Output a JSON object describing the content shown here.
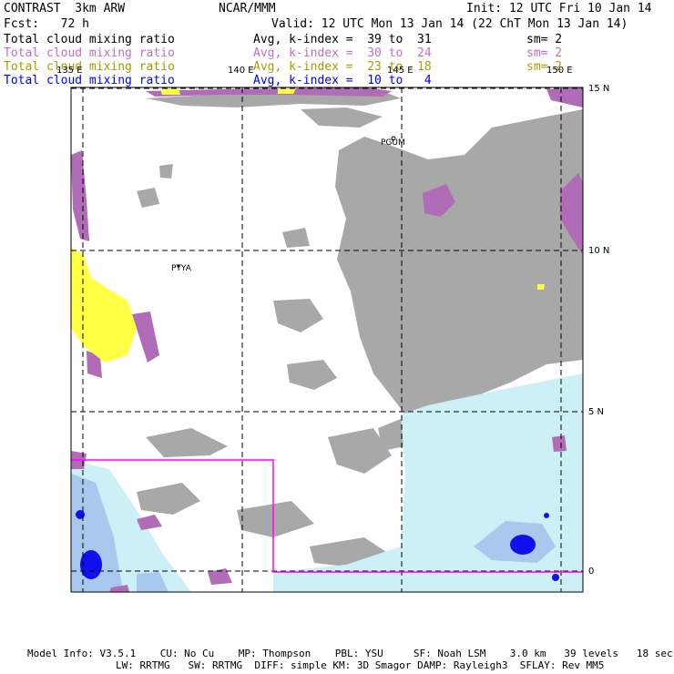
{
  "header": {
    "model": "CONTRAST  3km ARW",
    "org": "NCAR/MMM",
    "init": "Init: 12 UTC Fri 10 Jan 14",
    "fcst": "Fcst:   72 h",
    "valid": "Valid: 12 UTC Mon 13 Jan 14 (22 ChT Mon 13 Jan 14)"
  },
  "fields": [
    {
      "name": "Total cloud mixing ratio",
      "avg": "Avg, k-index =  39 to  31",
      "sm": "sm= 2",
      "color": "#000000"
    },
    {
      "name": "Total cloud mixing ratio",
      "avg": "Avg, k-index =  30 to  24",
      "sm": "sm= 2",
      "color": "#c070c0"
    },
    {
      "name": "Total cloud mixing ratio",
      "avg": "Avg, k-index =  23 to  18",
      "sm": "sm= 2",
      "color": "#a0a000"
    },
    {
      "name": "Total cloud mixing ratio",
      "avg": "Avg, k-index =  10 to   4",
      "sm": "",
      "color": "#0000ff"
    }
  ],
  "map": {
    "lon_labels": [
      "135 E",
      "140 E",
      "145 E",
      "150 E"
    ],
    "lat_labels": [
      "15 N",
      "10 N",
      "5 N",
      "0"
    ],
    "stations": [
      "PGUM",
      "PTYA"
    ],
    "colors": {
      "high_cloud": "#a8a8a8",
      "mid_cloud": "#b06cb6",
      "low_cloud": "#ffff44",
      "shallow_light": "#cdeff6",
      "shallow_mid": "#a8c8ee",
      "shallow_dark": "#1010ee",
      "domain_box": "#ff00ff"
    }
  },
  "footer": {
    "line1": "Model Info: V3.5.1    CU: No Cu    MP: Thompson    PBL: YSU     SF: Noah LSM    3.0 km   39 levels   18 sec",
    "line2": "LW: RRTMG   SW: RRTMG  DIFF: simple KM: 3D Smagor DAMP: Rayleigh3  SFLAY: Rev MM5"
  }
}
